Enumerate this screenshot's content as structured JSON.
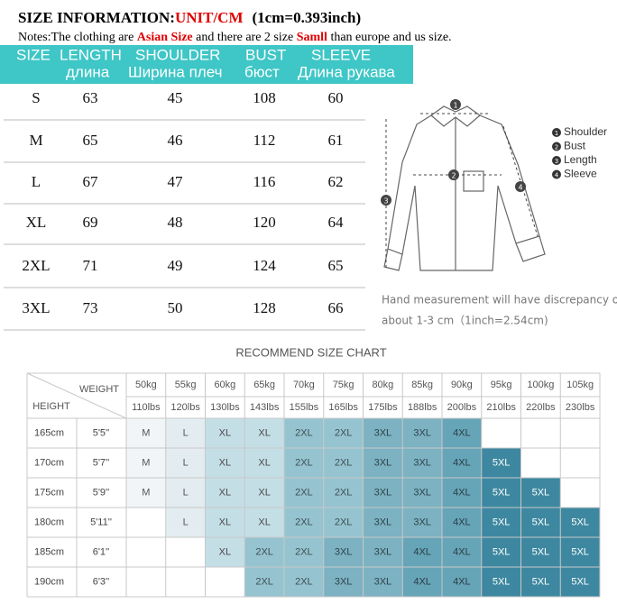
{
  "title": {
    "label": "SIZE INFORMATION:",
    "unit": "UNIT/CM",
    "conversion": "(1cm=0.393inch)"
  },
  "notes": [
    "Notes:The clothing are ",
    "Asian Size",
    " and there are 2 size ",
    "Samll",
    " than europe and us size."
  ],
  "size_table": {
    "header_en": [
      "SIZE",
      "LENGTH",
      "SHOULDER",
      "BUST",
      "SLEEVE"
    ],
    "header_ru": [
      "длина",
      "Ширина плеч",
      "бюст",
      "Длина рукава"
    ],
    "rows": [
      [
        "S",
        "63",
        "45",
        "108",
        "60"
      ],
      [
        "M",
        "65",
        "46",
        "112",
        "61"
      ],
      [
        "L",
        "67",
        "47",
        "116",
        "62"
      ],
      [
        "XL",
        "69",
        "48",
        "120",
        "64"
      ],
      [
        "2XL",
        "71",
        "49",
        "124",
        "65"
      ],
      [
        "3XL",
        "73",
        "50",
        "128",
        "66"
      ]
    ]
  },
  "diagram": {
    "legend": [
      {
        "number": "1",
        "label": "Shoulder"
      },
      {
        "number": "2",
        "label": "Bust"
      },
      {
        "number": "3",
        "label": "Length"
      },
      {
        "number": "4",
        "label": "Sleeve"
      }
    ],
    "note": [
      "Hand measurement will have discrepancy of",
      "about 1-3 cm（1inch=2.54cm)"
    ]
  },
  "recommend": {
    "title": "RECOMMEND SIZE CHART",
    "weight_label": "WEIGHT",
    "height_label": "HEIGHT",
    "weights_kg": [
      "50kg",
      "55kg",
      "60kg",
      "65kg",
      "70kg",
      "75kg",
      "80kg",
      "85kg",
      "90kg",
      "95kg",
      "100kg",
      "105kg"
    ],
    "weights_lbs": [
      "110lbs",
      "120lbs",
      "130lbs",
      "143lbs",
      "155lbs",
      "165lbs",
      "175lbs",
      "188lbs",
      "200lbs",
      "210lbs",
      "220lbs",
      "230lbs"
    ],
    "rows": [
      {
        "cm": "165cm",
        "ft": "5'5''",
        "sizes": [
          "M",
          "L",
          "XL",
          "XL",
          "2XL",
          "2XL",
          "3XL",
          "3XL",
          "4XL",
          null,
          null,
          null
        ]
      },
      {
        "cm": "170cm",
        "ft": "5'7''",
        "sizes": [
          "M",
          "L",
          "XL",
          "XL",
          "2XL",
          "2XL",
          "3XL",
          "3XL",
          "4XL",
          "5XL",
          null,
          null
        ]
      },
      {
        "cm": "175cm",
        "ft": "5'9''",
        "sizes": [
          "M",
          "L",
          "XL",
          "XL",
          "2XL",
          "2XL",
          "3XL",
          "3XL",
          "4XL",
          "5XL",
          "5XL",
          null
        ]
      },
      {
        "cm": "180cm",
        "ft": "5'11''",
        "sizes": [
          null,
          "L",
          "XL",
          "XL",
          "2XL",
          "2XL",
          "3XL",
          "3XL",
          "4XL",
          "5XL",
          "5XL",
          "5XL"
        ]
      },
      {
        "cm": "185cm",
        "ft": "6'1''",
        "sizes": [
          null,
          null,
          "XL",
          "2XL",
          "2XL",
          "3XL",
          "3XL",
          "4XL",
          "4XL",
          "5XL",
          "5XL",
          "5XL"
        ]
      },
      {
        "cm": "190cm",
        "ft": "6'3''",
        "sizes": [
          null,
          null,
          null,
          "2XL",
          "2XL",
          "3XL",
          "3XL",
          "4XL",
          "4XL",
          "5XL",
          "5XL",
          "5XL"
        ]
      }
    ],
    "size_colors": {
      "M": {
        "fill": "#f1f5f7",
        "text": "#555555"
      },
      "L": {
        "fill": "#e3edf1",
        "text": "#555555"
      },
      "XL": {
        "fill": "#c4dee6",
        "text": "#4a4a4a"
      },
      "2XL": {
        "fill": "#95c4d0",
        "text": "#3f4f55"
      },
      "3XL": {
        "fill": "#7cb2c2",
        "text": "#2f4349"
      },
      "4XL": {
        "fill": "#66a4b7",
        "text": "#2a3d44"
      },
      "5XL": {
        "fill": "#3d88a0",
        "text": "#ffffff"
      }
    }
  }
}
